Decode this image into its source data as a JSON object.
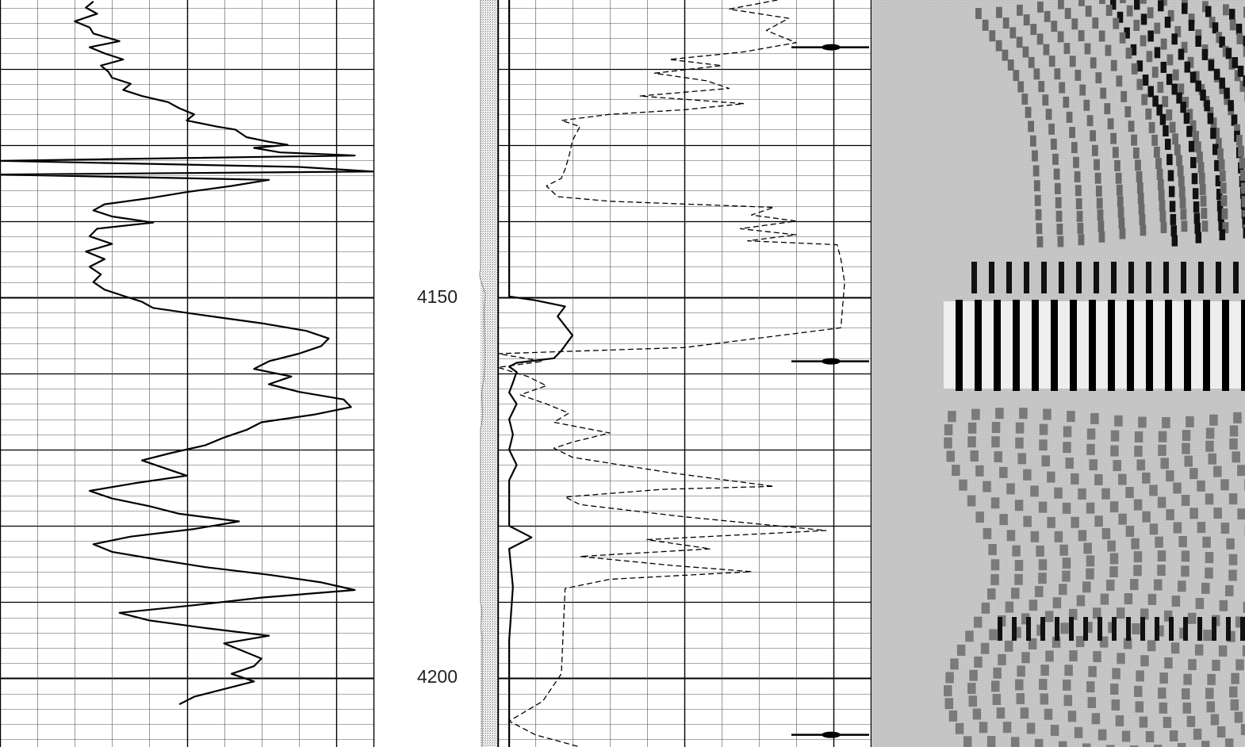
{
  "chart_data": {
    "type": "line",
    "title": "",
    "depth_axis": {
      "labels": [
        "4150",
        "4200"
      ],
      "visible_range": [
        4111,
        4209
      ],
      "major_every": 50,
      "medium_every": 10,
      "minor_every": 2
    },
    "grid": true,
    "colors": {
      "curve": "#000000",
      "grid_minor": "#555555",
      "grid_major": "#000000",
      "image_bg": "#c6c6c6",
      "lithology_strip": "#d0d0d0"
    },
    "tracks": [
      {
        "name": "",
        "series": [
          {
            "name": "",
            "style": "solid",
            "x": [
              0.25,
              0.23,
              0.26,
              0.2,
              0.24,
              0.25,
              0.32,
              0.24,
              0.28,
              0.33,
              0.27,
              0.29,
              0.3,
              0.35,
              0.33,
              0.38,
              0.45,
              0.48,
              0.52,
              0.5,
              0.58,
              0.63,
              0.66,
              0.72,
              0.77,
              0.68,
              0.75,
              0.95,
              0.0,
              0.8,
              1.0,
              0.0,
              0.72,
              0.62,
              0.5,
              0.4,
              0.28,
              0.25,
              0.3,
              0.41,
              0.26,
              0.24,
              0.3,
              0.23,
              0.28,
              0.24,
              0.27,
              0.25,
              0.28,
              0.33,
              0.38,
              0.41,
              0.55,
              0.7,
              0.82,
              0.88,
              0.86,
              0.8,
              0.72,
              0.68,
              0.78,
              0.72,
              0.8,
              0.92,
              0.94,
              0.84,
              0.7,
              0.66,
              0.6,
              0.55,
              0.46,
              0.38,
              0.44,
              0.5,
              0.36,
              0.24,
              0.3,
              0.4,
              0.48,
              0.64,
              0.52,
              0.35,
              0.25,
              0.3,
              0.42,
              0.55,
              0.72,
              0.86,
              0.95,
              0.7,
              0.52,
              0.32,
              0.4,
              0.55,
              0.72,
              0.6,
              0.65,
              0.7,
              0.68,
              0.62,
              0.68,
              0.6,
              0.52,
              0.48
            ],
            "depth": [
              4111.2,
              4112.0,
              4112.8,
              4113.8,
              4114.6,
              4115.4,
              4116.4,
              4117.2,
              4118.0,
              4118.8,
              4119.6,
              4120.4,
              4121.2,
              4122.0,
              4122.8,
              4123.6,
              4124.4,
              4125.2,
              4126.0,
              4126.8,
              4127.6,
              4128.0,
              4129.0,
              4129.6,
              4130.0,
              4130.4,
              4131.0,
              4131.4,
              4132.1,
              4132.9,
              4133.5,
              4133.9,
              4134.6,
              4135.4,
              4136.2,
              4137.0,
              4137.8,
              4138.6,
              4139.4,
              4140.2,
              4141.0,
              4142.0,
              4143.0,
              4144.0,
              4145.0,
              4146.0,
              4147.0,
              4148.0,
              4149.0,
              4149.8,
              4150.6,
              4151.4,
              4152.4,
              4153.4,
              4154.4,
              4155.4,
              4156.4,
              4157.4,
              4158.4,
              4159.4,
              4160.4,
              4161.4,
              4162.4,
              4163.4,
              4164.4,
              4165.4,
              4166.4,
              4167.4,
              4168.4,
              4169.4,
              4170.4,
              4171.4,
              4172.4,
              4173.4,
              4174.4,
              4175.4,
              4176.4,
              4177.4,
              4178.4,
              4179.4,
              4180.4,
              4181.4,
              4182.4,
              4183.4,
              4184.4,
              4185.4,
              4186.4,
              4187.4,
              4188.4,
              4189.4,
              4190.4,
              4191.4,
              4192.4,
              4193.4,
              4194.4,
              4195.4,
              4196.4,
              4197.4,
              4198.4,
              4199.4,
              4200.4,
              4201.4,
              4202.4,
              4203.4
            ]
          }
        ]
      },
      {
        "name": "",
        "series": [
          {
            "name": "",
            "style": "solid",
            "x": [
              0.03,
              0.03,
              0.03,
              0.03,
              0.03,
              0.03,
              0.03,
              0.03,
              0.03,
              0.03,
              0.03,
              0.03,
              0.03,
              0.03,
              0.03,
              0.03,
              0.03,
              0.03,
              0.03,
              0.1,
              0.18,
              0.16,
              0.2,
              0.17,
              0.15,
              0.05,
              0.03,
              0.05,
              0.04,
              0.03,
              0.05,
              0.03,
              0.04,
              0.03,
              0.05,
              0.03,
              0.03,
              0.09,
              0.03,
              0.04,
              0.03,
              0.03,
              0.03
            ],
            "depth": [
              4111.0,
              4114.0,
              4117.0,
              4120.0,
              4123.0,
              4126.0,
              4129.0,
              4132.0,
              4135.0,
              4138.0,
              4141.0,
              4144.0,
              4147.0,
              4148.4,
              4148.8,
              4149.0,
              4149.4,
              4149.7,
              4149.9,
              4150.4,
              4151.2,
              4152.5,
              4155.0,
              4157.0,
              4158.0,
              4158.6,
              4159.1,
              4159.8,
              4161.2,
              4162.5,
              4164.0,
              4166.0,
              4168.0,
              4170.0,
              4172.0,
              4174.0,
              4180.0,
              4181.5,
              4183.0,
              4188.0,
              4195.0,
              4202.0,
              4209.0
            ]
          },
          {
            "name": "",
            "style": "dashed",
            "x": [
              0.75,
              0.62,
              0.78,
              0.72,
              0.8,
              0.66,
              0.46,
              0.6,
              0.42,
              0.56,
              0.62,
              0.38,
              0.66,
              0.5,
              0.3,
              0.17,
              0.22,
              0.2,
              0.19,
              0.18,
              0.17,
              0.13,
              0.16,
              0.3,
              0.74,
              0.68,
              0.8,
              0.65,
              0.8,
              0.67,
              0.91,
              0.92,
              0.93,
              0.92,
              0.5,
              0.0,
              0.12,
              0.0,
              0.08,
              0.13,
              0.06,
              0.13,
              0.19,
              0.15,
              0.3,
              0.2,
              0.15,
              0.2,
              0.46,
              0.74,
              0.44,
              0.18,
              0.22,
              0.5,
              0.88,
              0.4,
              0.57,
              0.22,
              0.47,
              0.68,
              0.3,
              0.18,
              0.17,
              0.12,
              0.03,
              0.1,
              0.22
            ],
            "depth": [
              4111.0,
              4112.2,
              4113.4,
              4115.0,
              4116.6,
              4117.8,
              4118.8,
              4119.6,
              4120.6,
              4121.6,
              4122.6,
              4123.6,
              4124.6,
              4125.4,
              4126.0,
              4126.8,
              4127.6,
              4129.4,
              4131.6,
              4133.2,
              4134.4,
              4135.4,
              4136.8,
              4137.4,
              4138.2,
              4139.2,
              4140.0,
              4141.0,
              4141.8,
              4142.6,
              4143.1,
              4145.0,
              4148.0,
              4154.0,
              4156.6,
              4157.4,
              4158.4,
              4159.2,
              4160.4,
              4161.6,
              4162.8,
              4164.0,
              4165.2,
              4166.4,
              4167.8,
              4169.0,
              4169.8,
              4171.0,
              4173.0,
              4174.8,
              4175.2,
              4176.2,
              4177.2,
              4178.8,
              4180.6,
              4181.8,
              4183.0,
              4184.0,
              4185.2,
              4186.0,
              4187.0,
              4188.2,
              4199.4,
              4203.0,
              4205.6,
              4207.4,
              4209.0
            ]
          }
        ]
      },
      {
        "name": "",
        "type": "image"
      }
    ]
  }
}
